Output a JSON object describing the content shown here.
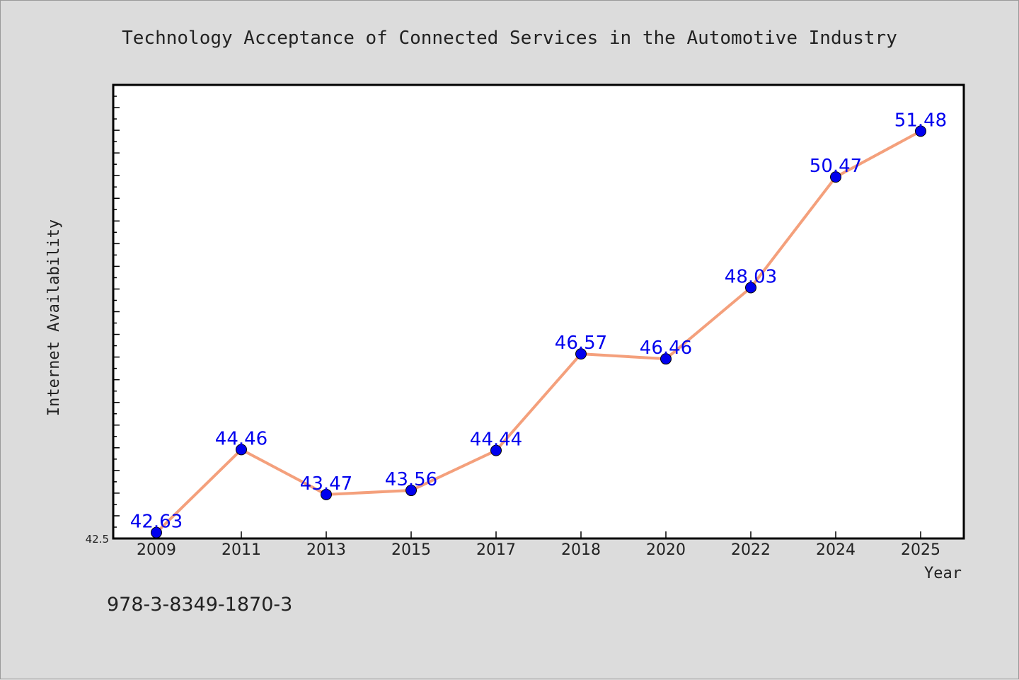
{
  "colors": {
    "background": "#dcdcdc",
    "plot_background": "#ffffff",
    "line": "#f4a07c",
    "marker": "#0000ee",
    "label": "#0000ee",
    "text": "#222222"
  },
  "chart_data": {
    "type": "line",
    "title": "Technology Acceptance of Connected Services in the Automotive Industry",
    "xlabel": "Year",
    "ylabel": "Internet Availability",
    "categories": [
      "2009",
      "2011",
      "2013",
      "2015",
      "2017",
      "2018",
      "2020",
      "2022",
      "2024",
      "2025"
    ],
    "values": [
      42.63,
      44.46,
      43.47,
      43.56,
      44.44,
      46.57,
      46.46,
      48.03,
      50.47,
      51.48
    ],
    "data_labels": [
      "42.63",
      "44.46",
      "43.47",
      "43.56",
      "44.44",
      "46.57",
      "46.46",
      "48.03",
      "50.47",
      "51.48"
    ],
    "y_tick_label": "42.5",
    "ylim": [
      42.5,
      52.5
    ],
    "grid": false,
    "legend": "none"
  },
  "footnote": "978-3-8349-1870-3"
}
